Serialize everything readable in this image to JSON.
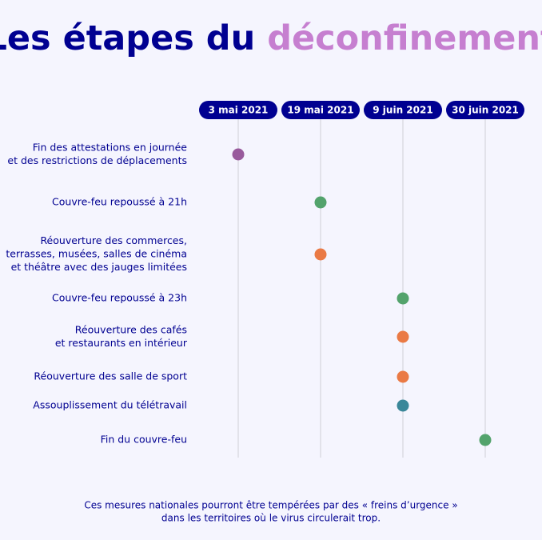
{
  "title": {
    "part1": "Les étapes du",
    "part2": "déconfinement"
  },
  "timeline": [
    {
      "date": "3 mai 2021",
      "events": [
        {
          "lines": [
            "Fin des attestations en journée",
            "et des restrictions de déplacements"
          ],
          "color": "#985a9c"
        }
      ]
    },
    {
      "date": "19 mai 2021",
      "events": [
        {
          "lines": [
            "Couvre-feu repoussé à 21h"
          ],
          "color": "#53a36c"
        },
        {
          "lines": [
            "Réouverture des commerces,",
            "terrasses, musées, salles de cinéma",
            "et théâtre avec des jauges limitées"
          ],
          "color": "#ea7a45"
        }
      ]
    },
    {
      "date": "9 juin 2021",
      "events": [
        {
          "lines": [
            "Couvre-feu repoussé à 23h"
          ],
          "color": "#53a36c"
        },
        {
          "lines": [
            "Réouverture des cafés",
            "et restaurants en intérieur"
          ],
          "color": "#ea7a45"
        },
        {
          "lines": [
            "Réouverture des salle de sport"
          ],
          "color": "#ea7a45"
        },
        {
          "lines": [
            "Assouplissement du télétravail"
          ],
          "color": "#3a8799"
        }
      ]
    },
    {
      "date": "30 juin 2021",
      "events": [
        {
          "lines": [
            "Fin du couvre-feu"
          ],
          "color": "#53a36c"
        }
      ]
    }
  ],
  "footer": [
    "Ces mesures nationales pourront être tempérées par des « freins d’urgence »",
    "dans les territoires où le virus circulerait trop."
  ]
}
